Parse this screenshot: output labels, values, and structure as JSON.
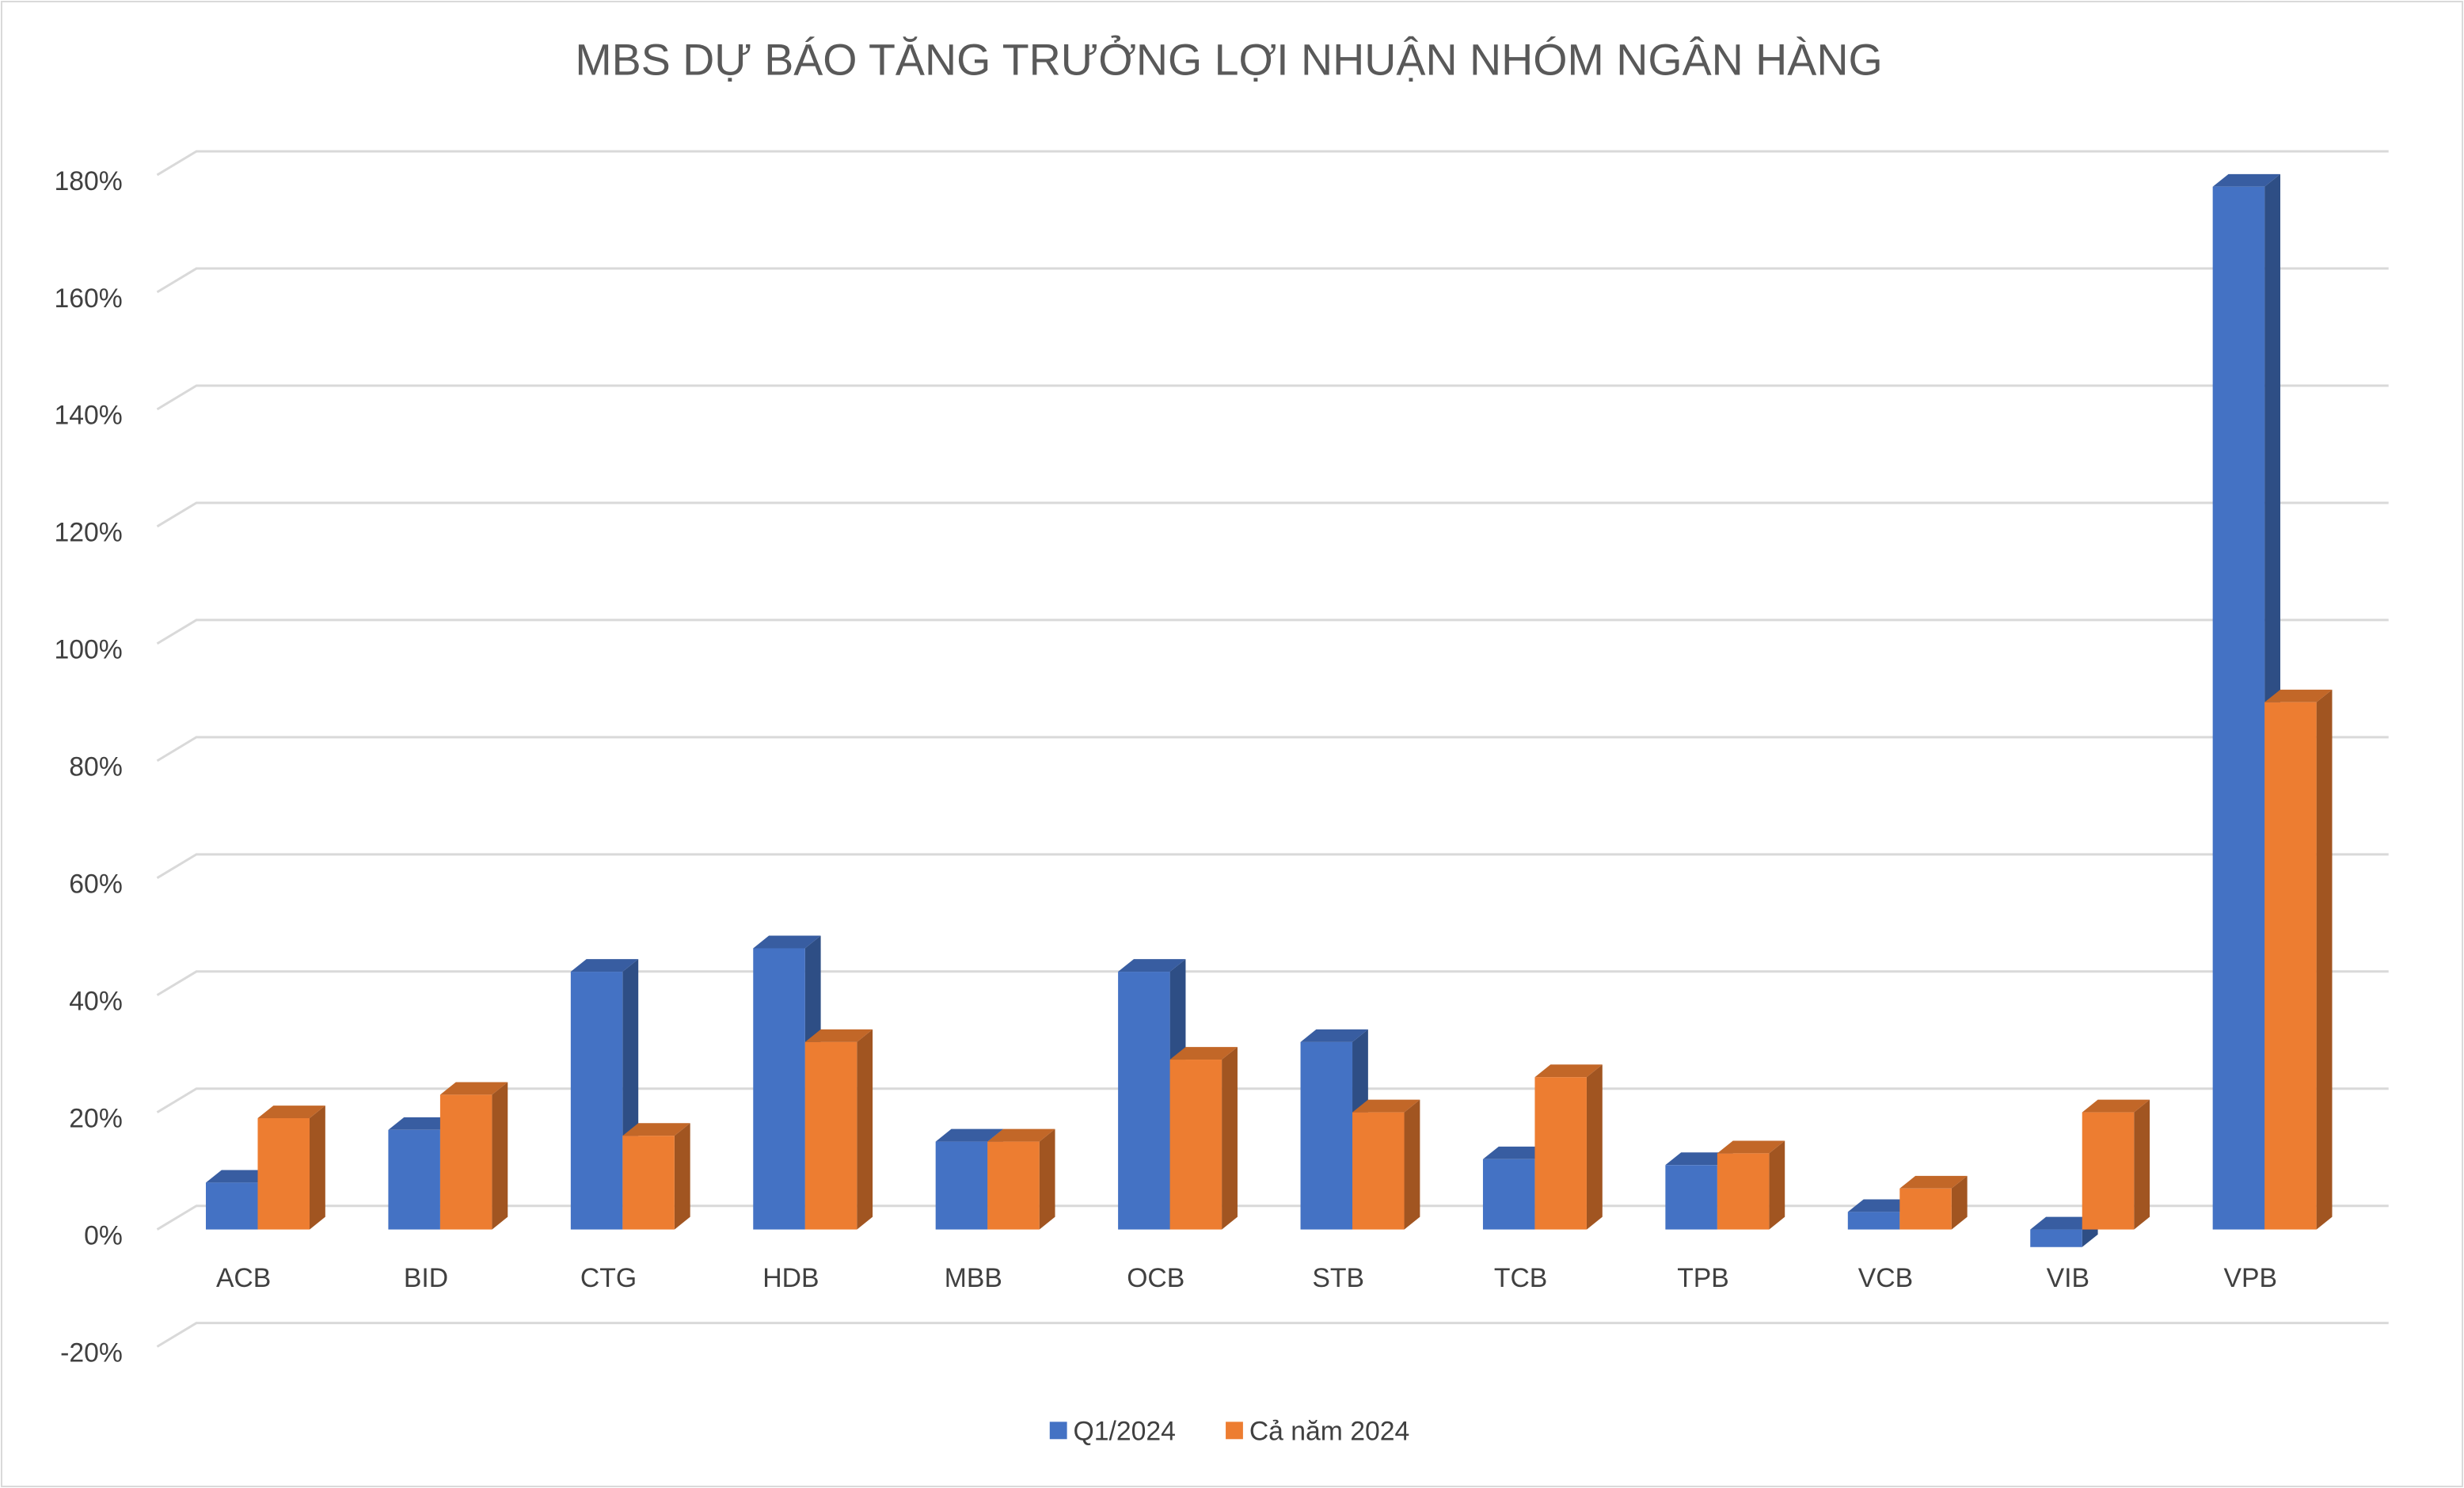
{
  "chart_data": {
    "type": "bar3d",
    "title": "MBS DỰ BÁO TĂNG TRƯỞNG LỢI NHUẬN NHÓM NGÂN HÀNG",
    "categories": [
      "ACB",
      "BID",
      "CTG",
      "HDB",
      "MBB",
      "OCB",
      "STB",
      "TCB",
      "TPB",
      "VCB",
      "VIB",
      "VPB"
    ],
    "series": [
      {
        "name": "Q1/2024",
        "color": "#4472c4",
        "values": [
          8,
          17,
          44,
          48,
          15,
          44,
          32,
          12,
          11,
          3,
          -3,
          178
        ]
      },
      {
        "name": "Cả năm 2024",
        "color": "#ed7d31",
        "values": [
          19,
          23,
          16,
          32,
          15,
          29,
          20,
          26,
          13,
          7,
          20,
          90
        ]
      }
    ],
    "ylim": [
      -20,
      180
    ],
    "yticks": [
      {
        "value": -20,
        "label": "-20%"
      },
      {
        "value": 0,
        "label": "0%"
      },
      {
        "value": 20,
        "label": "20%"
      },
      {
        "value": 40,
        "label": "40%"
      },
      {
        "value": 60,
        "label": "60%"
      },
      {
        "value": 80,
        "label": "80%"
      },
      {
        "value": 100,
        "label": "100%"
      },
      {
        "value": 120,
        "label": "120%"
      },
      {
        "value": 140,
        "label": "140%"
      },
      {
        "value": 160,
        "label": "160%"
      },
      {
        "value": 180,
        "label": "180%"
      }
    ],
    "grid": true,
    "legend": "bottom"
  }
}
